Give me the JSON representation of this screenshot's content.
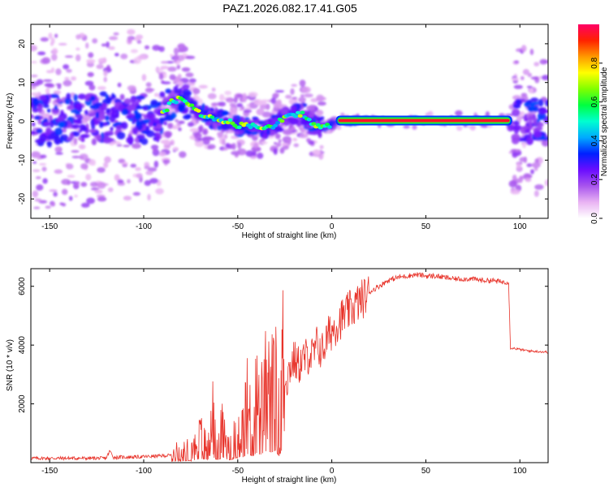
{
  "title": "PAZ1.2026.082.17.41.G05",
  "colors": {
    "axis": "#000000",
    "snr_line": "#e8332a",
    "background_spectrogram": "#ffffff"
  },
  "chart_data": [
    {
      "type": "heatmap",
      "name": "spectrogram",
      "xlabel": "Height of straight line (km)",
      "ylabel": "Frequency (Hz)",
      "xlim": [
        -160,
        115
      ],
      "ylim": [
        -25,
        25
      ],
      "xticks": [
        -150,
        -100,
        -50,
        0,
        50,
        100
      ],
      "yticks": [
        -20,
        -10,
        0,
        10,
        20
      ],
      "grid": false,
      "ridge": {
        "x": [
          -155,
          -140,
          -120,
          -100,
          -90,
          -85,
          -80,
          -75,
          -70,
          -65,
          -60,
          -55,
          -50,
          -45,
          -40,
          -35,
          -30,
          -25,
          -20,
          -15,
          -10,
          -5,
          0,
          5,
          20,
          40,
          60,
          80,
          95,
          100,
          105,
          112
        ],
        "y": [
          0,
          0.5,
          1,
          0.5,
          2,
          5,
          6,
          4,
          2,
          1,
          0.5,
          0,
          -1,
          -1,
          -1,
          -2,
          -1,
          1,
          1.5,
          2,
          -1,
          -1.5,
          -1,
          0,
          0.2,
          0.2,
          0.2,
          0.2,
          0.2,
          0,
          0.3,
          0.5
        ]
      },
      "strong_band": {
        "x_start": 3,
        "x_end": 95,
        "y": 0.2
      },
      "colorbar": {
        "label": "Normalized spectral amplitude",
        "range": [
          0,
          1
        ],
        "ticks": [
          "0.0",
          "0.2",
          "0.4",
          "0.6",
          "0.8"
        ],
        "colormap": [
          "#ffffff",
          "#e9b3f3",
          "#a855ee",
          "#6a0dff",
          "#0020ff",
          "#00aaff",
          "#00ffd0",
          "#00ff40",
          "#80ff00",
          "#ffff00",
          "#ff9900",
          "#ff2200",
          "#ff0066"
        ]
      }
    },
    {
      "type": "line",
      "name": "snr",
      "xlabel": "Height of straight line (km)",
      "ylabel": "SNR (10 * v/v)",
      "xlim": [
        -160,
        115
      ],
      "ylim": [
        0,
        6600
      ],
      "xticks": [
        -150,
        -100,
        -50,
        0,
        50,
        100
      ],
      "yticks": [
        2000,
        4000,
        6000
      ],
      "grid": false,
      "series": [
        {
          "name": "SNR",
          "x": [
            -160,
            -140,
            -120,
            -118,
            -116,
            -100,
            -85,
            -82,
            -80,
            -76,
            -72,
            -70,
            -66,
            -64,
            -62,
            -60,
            -58,
            -55,
            -52,
            -50,
            -48,
            -45,
            -42,
            -40,
            -38,
            -35,
            -32,
            -30,
            -28,
            -26,
            -24,
            -22,
            -20,
            -18,
            -15,
            -12,
            -10,
            -8,
            -5,
            -2,
            0,
            5,
            10,
            15,
            20,
            25,
            30,
            35,
            40,
            45,
            50,
            55,
            60,
            65,
            70,
            75,
            80,
            85,
            90,
            94,
            95,
            96,
            100,
            105,
            110,
            115
          ],
          "y": [
            150,
            150,
            150,
            400,
            180,
            200,
            250,
            400,
            300,
            500,
            600,
            900,
            700,
            2000,
            800,
            700,
            1200,
            600,
            800,
            1300,
            1000,
            2000,
            1500,
            2200,
            1800,
            2600,
            2300,
            2700,
            1500,
            3400,
            2800,
            3300,
            3500,
            3300,
            3500,
            3700,
            3600,
            4000,
            3800,
            4300,
            4500,
            4900,
            5200,
            5500,
            5800,
            6000,
            6200,
            6300,
            6350,
            6400,
            6350,
            6350,
            6300,
            6250,
            6250,
            6250,
            6200,
            6200,
            6150,
            6150,
            3900,
            3900,
            3850,
            3800,
            3780,
            3760
          ]
        }
      ]
    }
  ]
}
